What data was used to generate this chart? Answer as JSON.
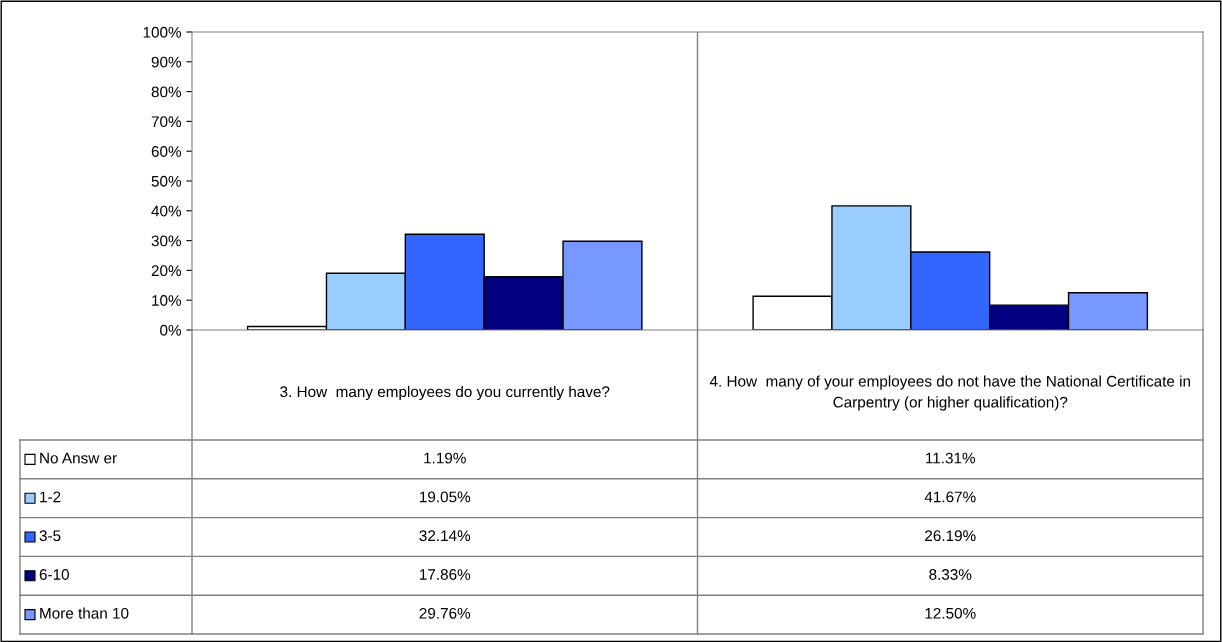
{
  "chart_data": {
    "type": "bar",
    "categories": [
      "3. How  many employees do you currently have?",
      "4. How  many of your employees do not have the National Certificate in Carpentry (or higher qualification)?"
    ],
    "series": [
      {
        "name": "No Answ er",
        "color": "#ffffff",
        "values": [
          1.19,
          11.31
        ],
        "value_labels": [
          "1.19%",
          "11.31%"
        ]
      },
      {
        "name": "1-2",
        "color": "#99ccff",
        "values": [
          19.05,
          41.67
        ],
        "value_labels": [
          "19.05%",
          "41.67%"
        ]
      },
      {
        "name": "3-5",
        "color": "#3366ff",
        "values": [
          32.14,
          26.19
        ],
        "value_labels": [
          "32.14%",
          "26.19%"
        ]
      },
      {
        "name": "6-10",
        "color": "#000080",
        "values": [
          17.86,
          8.33
        ],
        "value_labels": [
          "17.86%",
          "8.33%"
        ]
      },
      {
        "name": "More than 10",
        "color": "#7799ff",
        "values": [
          29.76,
          12.5
        ],
        "value_labels": [
          "29.76%",
          "12.50%"
        ]
      }
    ],
    "ylim": [
      0,
      100
    ],
    "yticks": [
      {
        "value": 0,
        "label": "0%"
      },
      {
        "value": 10,
        "label": "10%"
      },
      {
        "value": 20,
        "label": "20%"
      },
      {
        "value": 30,
        "label": "30%"
      },
      {
        "value": 40,
        "label": "40%"
      },
      {
        "value": 50,
        "label": "50%"
      },
      {
        "value": 60,
        "label": "60%"
      },
      {
        "value": 70,
        "label": "70%"
      },
      {
        "value": 80,
        "label": "80%"
      },
      {
        "value": 90,
        "label": "90%"
      },
      {
        "value": 100,
        "label": "100%"
      }
    ],
    "grid": false,
    "legend": "bottom"
  }
}
